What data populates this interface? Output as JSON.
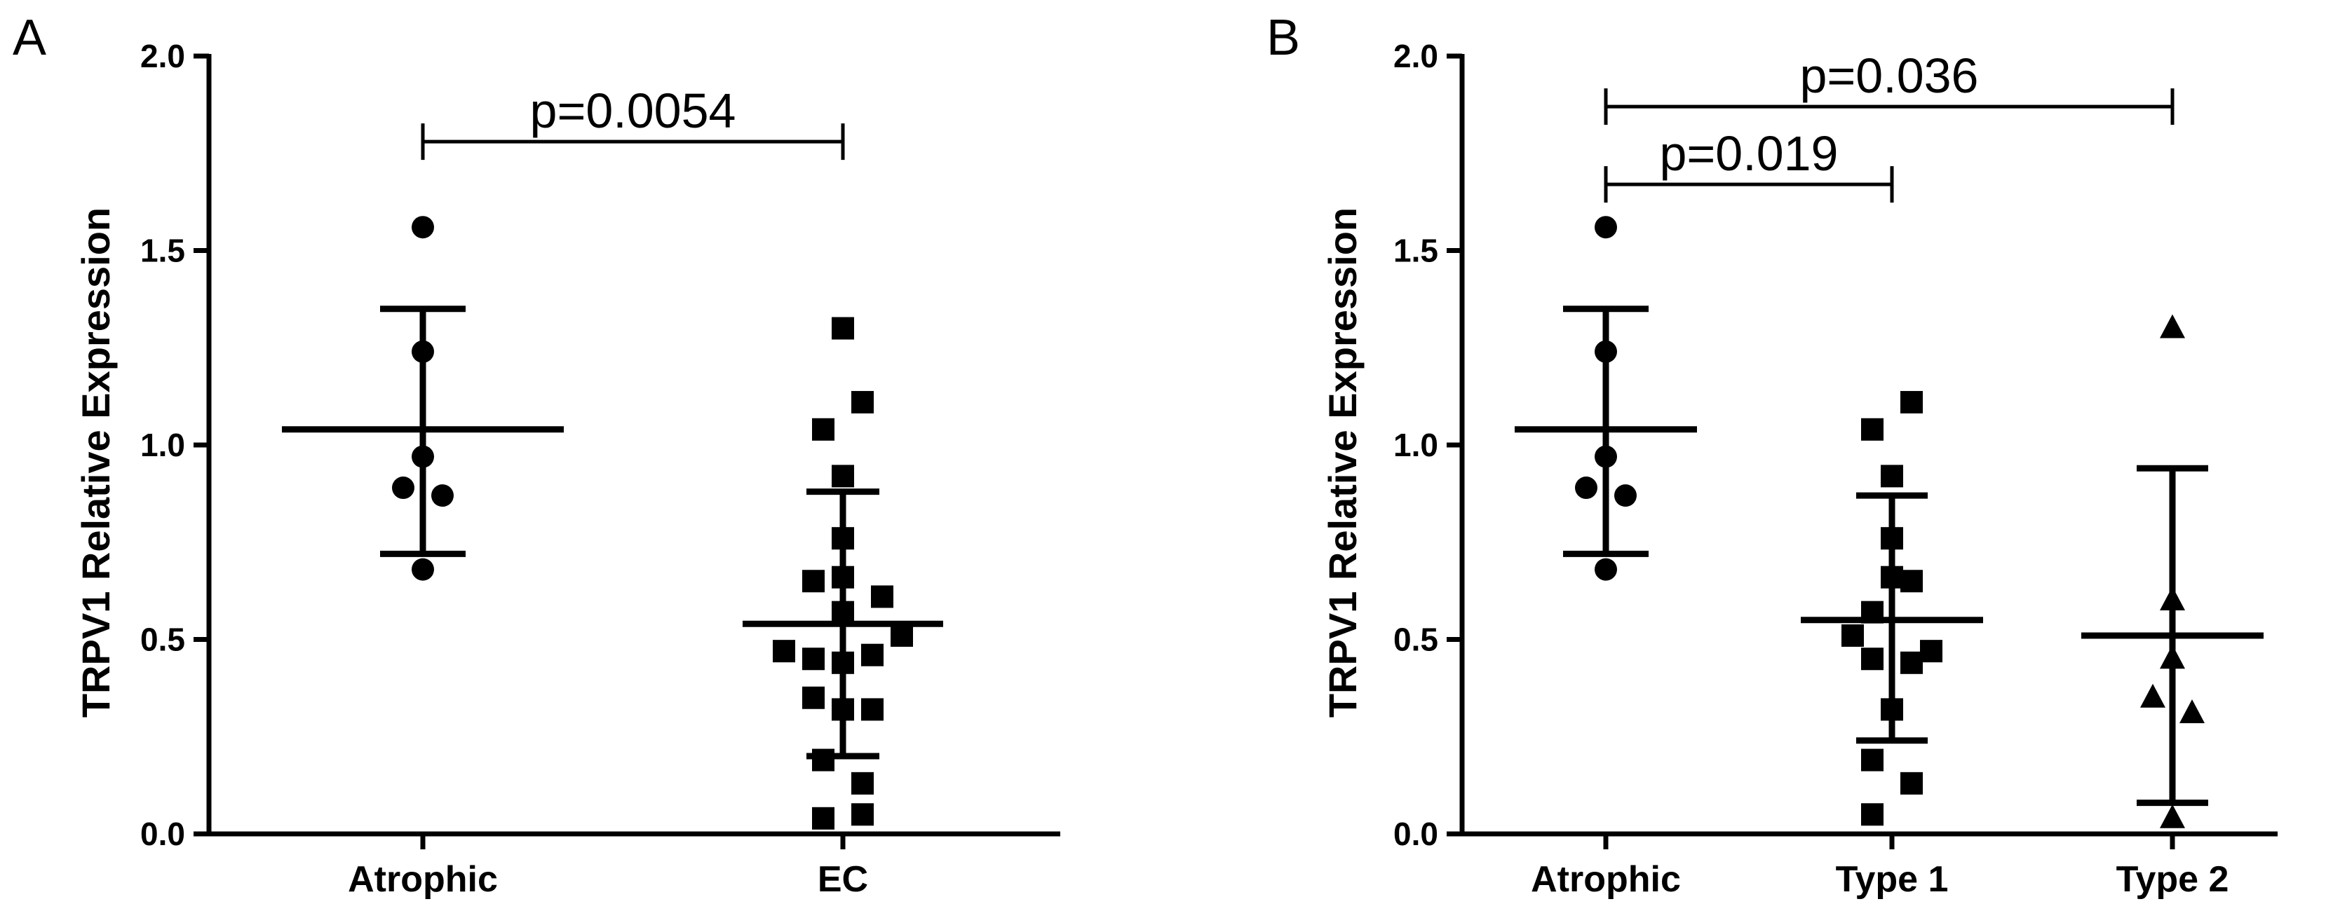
{
  "chart_data": [
    {
      "type": "scatter",
      "panel": "A",
      "ylabel": "TRPV1 Relative Expression",
      "ylim": [
        0,
        2.0
      ],
      "yticks": [
        "0.0",
        "0.5",
        "1.0",
        "1.5",
        "2.0"
      ],
      "categories": [
        "Atrophic",
        "EC"
      ],
      "groups": [
        {
          "name": "Atrophic",
          "marker": "circle",
          "mean": 1.04,
          "sd_low": 0.72,
          "sd_high": 1.35,
          "points": [
            1.56,
            1.24,
            0.97,
            0.89,
            0.87,
            0.68
          ],
          "offsets": [
            0,
            0,
            0,
            -1,
            1,
            0
          ]
        },
        {
          "name": "EC",
          "marker": "square",
          "mean": 0.54,
          "sd_low": 0.2,
          "sd_high": 0.88,
          "points": [
            1.3,
            1.11,
            1.04,
            0.92,
            0.76,
            0.66,
            0.65,
            0.61,
            0.57,
            0.51,
            0.47,
            0.46,
            0.45,
            0.44,
            0.35,
            0.32,
            0.32,
            0.19,
            0.13,
            0.05,
            0.04
          ],
          "offsets": [
            0,
            1,
            -1,
            0,
            0,
            0,
            -1.5,
            2,
            0,
            3,
            -3,
            1.5,
            -1.5,
            0,
            -1.5,
            0,
            1.5,
            -1,
            1,
            1,
            -1
          ]
        }
      ],
      "comparisons": [
        {
          "from": 0,
          "to": 1,
          "label": "p=0.0054",
          "y": 1.78
        }
      ]
    },
    {
      "type": "scatter",
      "panel": "B",
      "ylabel": "TRPV1 Relative Expression",
      "ylim": [
        0,
        2.0
      ],
      "yticks": [
        "0.0",
        "0.5",
        "1.0",
        "1.5",
        "2.0"
      ],
      "categories": [
        "Atrophic",
        "Type 1",
        "Type 2"
      ],
      "groups": [
        {
          "name": "Atrophic",
          "marker": "circle",
          "mean": 1.04,
          "sd_low": 0.72,
          "sd_high": 1.35,
          "points": [
            1.56,
            1.24,
            0.97,
            0.89,
            0.87,
            0.68
          ],
          "offsets": [
            0,
            0,
            0,
            -1,
            1,
            0
          ]
        },
        {
          "name": "Type 1",
          "marker": "square",
          "mean": 0.55,
          "sd_low": 0.24,
          "sd_high": 0.87,
          "points": [
            1.11,
            1.04,
            0.92,
            0.76,
            0.66,
            0.65,
            0.57,
            0.51,
            0.47,
            0.45,
            0.44,
            0.32,
            0.19,
            0.13,
            0.05
          ],
          "offsets": [
            1,
            -1,
            0,
            0,
            0,
            1,
            -1,
            -2,
            2,
            -1,
            1,
            0,
            -1,
            1,
            -1
          ]
        },
        {
          "name": "Type 2",
          "marker": "triangle",
          "mean": 0.51,
          "sd_low": 0.08,
          "sd_high": 0.94,
          "points": [
            1.3,
            0.6,
            0.45,
            0.35,
            0.31,
            0.04
          ],
          "offsets": [
            0,
            0,
            0,
            -1,
            1,
            0
          ]
        }
      ],
      "comparisons": [
        {
          "from": 0,
          "to": 2,
          "label": "p=0.036",
          "y": 1.87
        },
        {
          "from": 0,
          "to": 1,
          "label": "p=0.019",
          "y": 1.67
        }
      ]
    }
  ]
}
